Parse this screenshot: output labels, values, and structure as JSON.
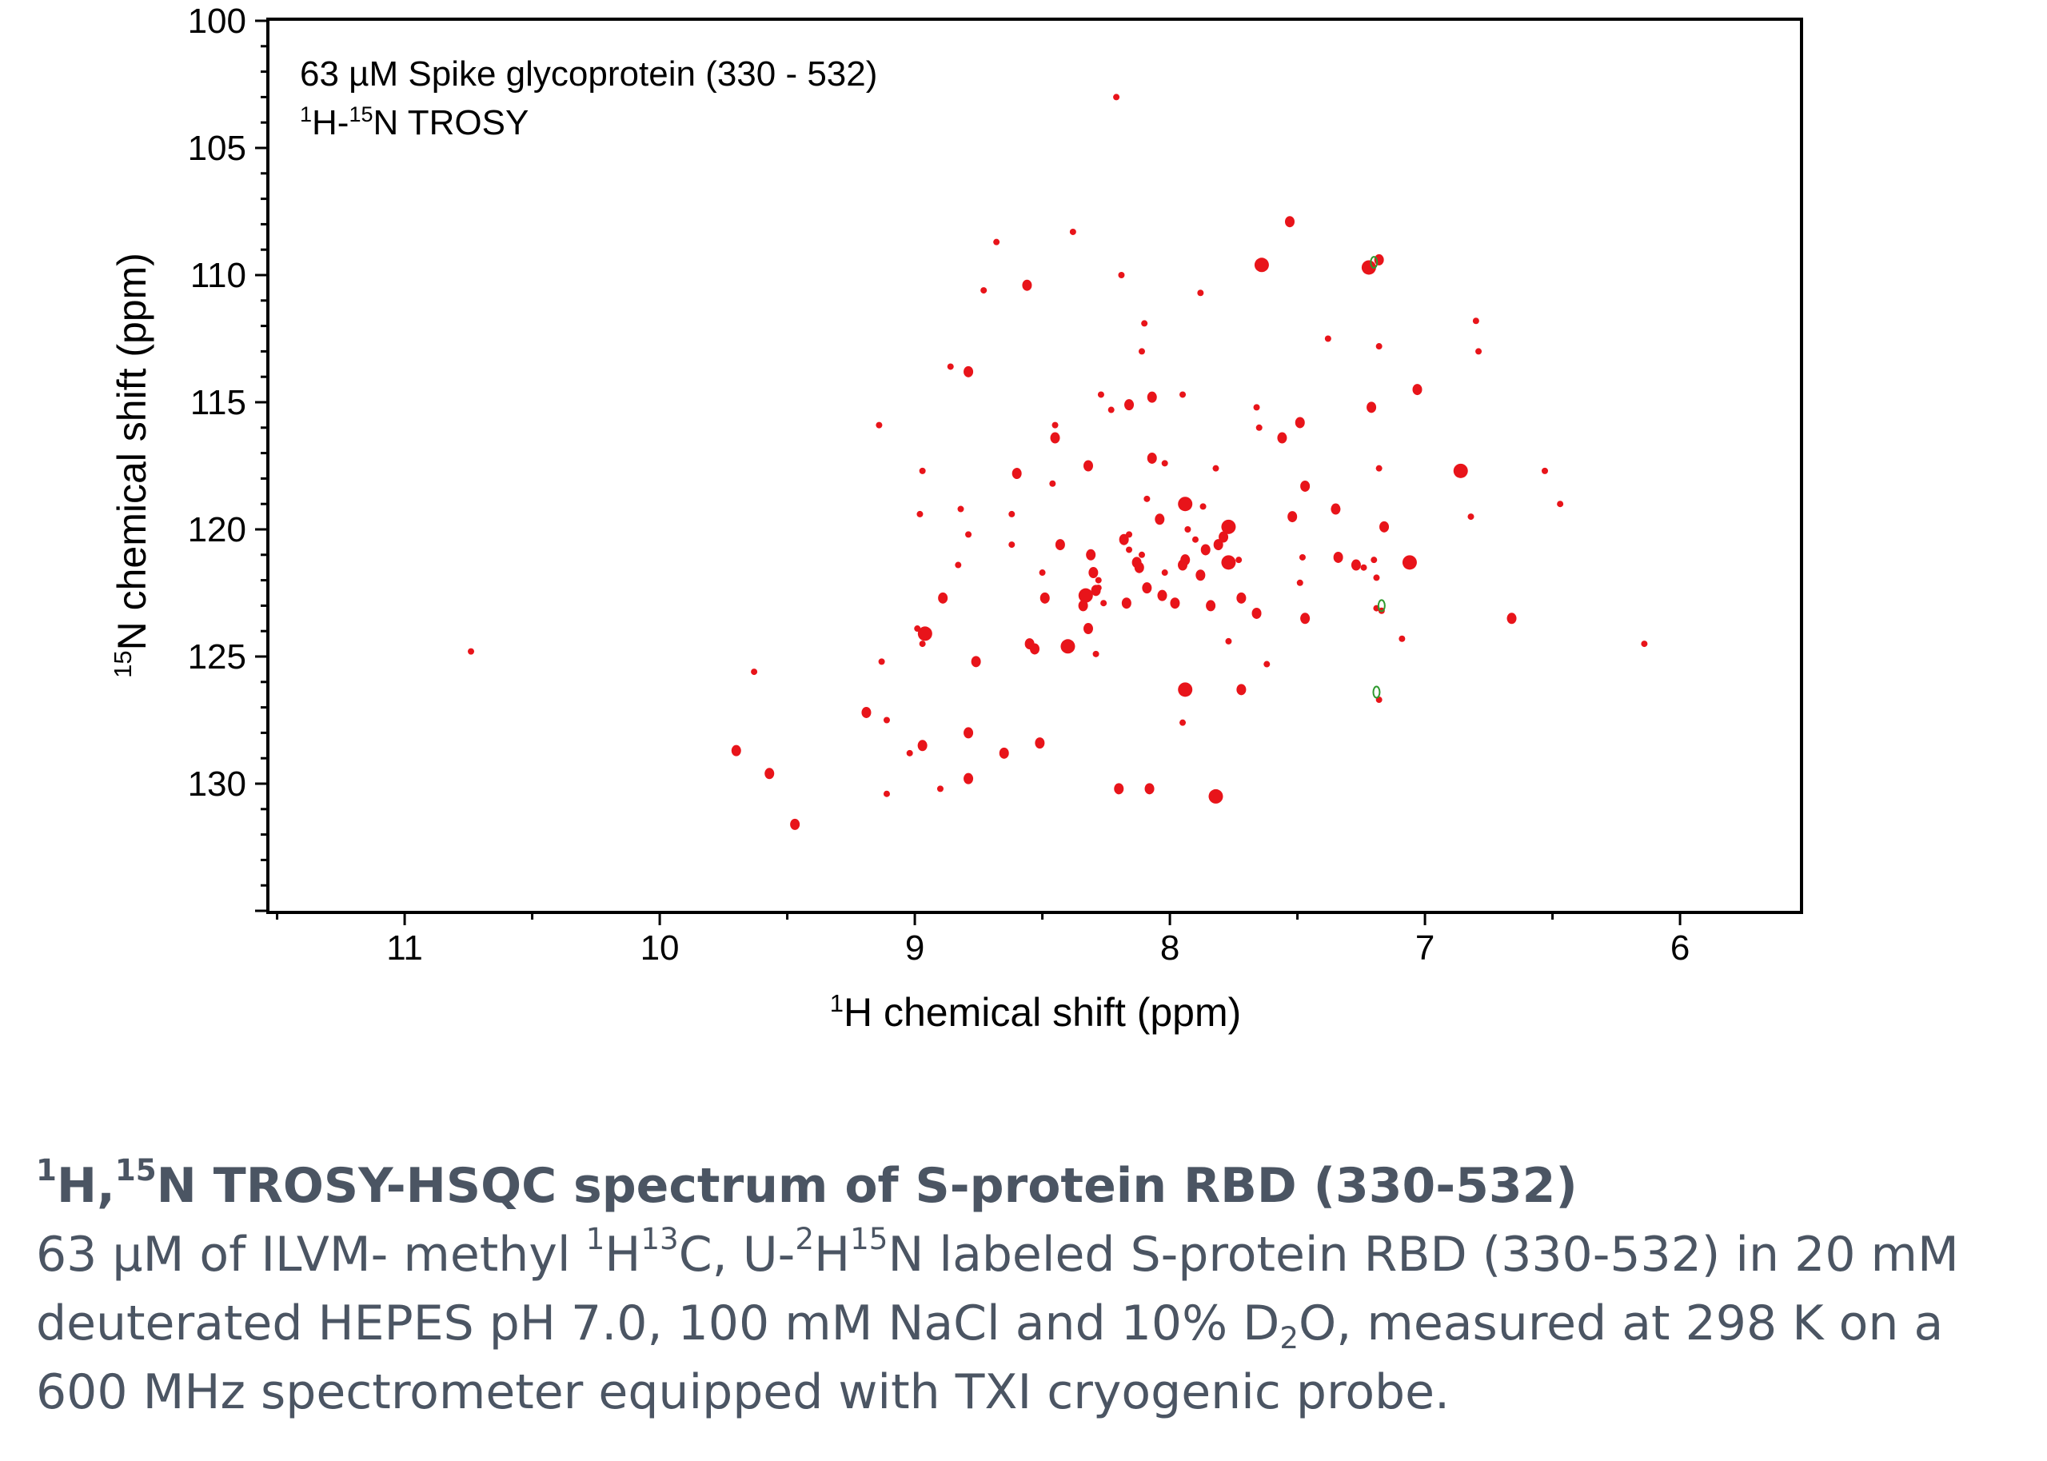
{
  "chart_data": {
    "type": "scatter",
    "annotation": {
      "line1": "63 µM Spike glycoprotein (330 - 532)",
      "line2_sup_a": "1",
      "line2_a": "H-",
      "line2_sup_b": "15",
      "line2_b": "N TROSY"
    },
    "xlabel": {
      "sup": "1",
      "text": "H chemical shift (ppm)"
    },
    "ylabel": {
      "sup": "15",
      "text": "N chemical shift (ppm)"
    },
    "xlim": [
      11.53,
      5.53
    ],
    "ylim": [
      135,
      100
    ],
    "x_reversed": true,
    "y_reversed": true,
    "xticks": [
      11,
      10,
      9,
      8,
      7,
      6
    ],
    "yticks": [
      100,
      105,
      110,
      115,
      120,
      125,
      130
    ],
    "grid": false,
    "colors": {
      "positive": "#e8141a",
      "negative": "#2e9a2e"
    },
    "series": [
      {
        "peaks": [
          [
            8.21,
            103.0,
            1
          ],
          [
            7.53,
            107.9,
            2
          ],
          [
            8.38,
            108.3,
            1
          ],
          [
            8.68,
            108.7,
            1
          ],
          [
            7.64,
            109.6,
            3
          ],
          [
            8.19,
            110.0,
            1
          ],
          [
            8.56,
            110.4,
            2
          ],
          [
            8.73,
            110.6,
            1
          ],
          [
            7.88,
            110.7,
            1
          ],
          [
            7.22,
            109.7,
            3
          ],
          [
            7.18,
            109.4,
            2
          ],
          [
            8.1,
            111.9,
            1
          ],
          [
            6.8,
            111.8,
            1
          ],
          [
            7.38,
            112.5,
            1
          ],
          [
            7.18,
            112.8,
            1
          ],
          [
            8.11,
            113.0,
            1
          ],
          [
            6.79,
            113.0,
            1
          ],
          [
            8.86,
            113.6,
            1
          ],
          [
            8.79,
            113.8,
            2
          ],
          [
            7.03,
            114.5,
            2
          ],
          [
            8.27,
            114.7,
            1
          ],
          [
            8.07,
            114.8,
            2
          ],
          [
            7.95,
            114.7,
            1
          ],
          [
            8.16,
            115.1,
            2
          ],
          [
            7.21,
            115.2,
            2
          ],
          [
            7.66,
            115.2,
            1
          ],
          [
            7.49,
            115.8,
            2
          ],
          [
            8.45,
            115.9,
            1
          ],
          [
            9.14,
            115.9,
            1
          ],
          [
            8.23,
            115.3,
            1
          ],
          [
            7.65,
            116.0,
            1
          ],
          [
            8.45,
            116.4,
            2
          ],
          [
            7.56,
            116.4,
            2
          ],
          [
            8.07,
            117.2,
            2
          ],
          [
            8.02,
            117.4,
            1
          ],
          [
            8.32,
            117.5,
            2
          ],
          [
            7.82,
            117.6,
            1
          ],
          [
            7.18,
            117.6,
            1
          ],
          [
            8.97,
            117.7,
            1
          ],
          [
            8.6,
            117.8,
            2
          ],
          [
            6.86,
            117.7,
            3
          ],
          [
            6.53,
            117.7,
            1
          ],
          [
            8.46,
            118.2,
            1
          ],
          [
            7.47,
            118.3,
            2
          ],
          [
            8.09,
            118.8,
            1
          ],
          [
            7.94,
            119.0,
            3
          ],
          [
            7.35,
            119.2,
            2
          ],
          [
            7.87,
            119.1,
            1
          ],
          [
            8.82,
            119.2,
            1
          ],
          [
            6.47,
            119.0,
            1
          ],
          [
            8.98,
            119.4,
            1
          ],
          [
            8.04,
            119.6,
            2
          ],
          [
            7.52,
            119.5,
            2
          ],
          [
            8.62,
            119.4,
            1
          ],
          [
            6.82,
            119.5,
            1
          ],
          [
            7.77,
            119.9,
            3
          ],
          [
            7.93,
            120.0,
            1
          ],
          [
            8.16,
            120.2,
            1
          ],
          [
            7.9,
            120.4,
            1
          ],
          [
            7.79,
            120.3,
            2
          ],
          [
            7.16,
            119.9,
            2
          ],
          [
            8.79,
            120.2,
            1
          ],
          [
            8.18,
            120.4,
            2
          ],
          [
            7.81,
            120.6,
            2
          ],
          [
            8.43,
            120.6,
            2
          ],
          [
            8.16,
            120.8,
            1
          ],
          [
            7.86,
            120.8,
            2
          ],
          [
            8.11,
            121.0,
            1
          ],
          [
            8.62,
            120.6,
            1
          ],
          [
            8.31,
            121.0,
            2
          ],
          [
            7.73,
            121.2,
            1
          ],
          [
            7.34,
            121.1,
            2
          ],
          [
            7.94,
            121.2,
            2
          ],
          [
            8.13,
            121.3,
            2
          ],
          [
            7.77,
            121.3,
            3
          ],
          [
            7.48,
            121.1,
            1
          ],
          [
            8.12,
            121.5,
            2
          ],
          [
            7.95,
            121.4,
            2
          ],
          [
            7.06,
            121.3,
            3
          ],
          [
            7.2,
            121.2,
            1
          ],
          [
            7.27,
            121.4,
            2
          ],
          [
            7.24,
            121.5,
            1
          ],
          [
            8.83,
            121.4,
            1
          ],
          [
            8.3,
            121.7,
            2
          ],
          [
            7.88,
            121.8,
            2
          ],
          [
            8.02,
            121.7,
            1
          ],
          [
            8.5,
            121.7,
            1
          ],
          [
            7.19,
            121.9,
            1
          ],
          [
            8.28,
            122.0,
            1
          ],
          [
            8.09,
            122.3,
            2
          ],
          [
            7.49,
            122.1,
            1
          ],
          [
            8.28,
            122.3,
            1
          ],
          [
            8.29,
            122.4,
            2
          ],
          [
            8.03,
            122.6,
            2
          ],
          [
            8.33,
            122.6,
            3
          ],
          [
            8.49,
            122.7,
            2
          ],
          [
            8.89,
            122.7,
            2
          ],
          [
            7.72,
            122.7,
            2
          ],
          [
            8.26,
            122.9,
            1
          ],
          [
            8.17,
            122.9,
            2
          ],
          [
            7.98,
            122.9,
            2
          ],
          [
            7.84,
            123.0,
            2
          ],
          [
            8.34,
            123.0,
            2
          ],
          [
            7.66,
            123.3,
            2
          ],
          [
            7.47,
            123.5,
            2
          ],
          [
            6.66,
            123.5,
            2
          ],
          [
            7.19,
            123.1,
            1
          ],
          [
            7.17,
            123.2,
            1
          ],
          [
            8.32,
            123.9,
            2
          ],
          [
            8.99,
            123.9,
            1
          ],
          [
            8.96,
            124.1,
            3
          ],
          [
            7.09,
            124.3,
            1
          ],
          [
            8.97,
            124.5,
            1
          ],
          [
            7.77,
            124.4,
            1
          ],
          [
            8.55,
            124.5,
            2
          ],
          [
            8.4,
            124.6,
            3
          ],
          [
            8.53,
            124.7,
            2
          ],
          [
            8.29,
            124.9,
            1
          ],
          [
            9.13,
            125.2,
            1
          ],
          [
            8.76,
            125.2,
            2
          ],
          [
            7.62,
            125.3,
            1
          ],
          [
            9.63,
            125.6,
            1
          ],
          [
            7.72,
            126.3,
            2
          ],
          [
            7.94,
            126.3,
            3
          ],
          [
            7.18,
            126.7,
            1
          ],
          [
            9.19,
            127.2,
            2
          ],
          [
            9.11,
            127.5,
            1
          ],
          [
            7.95,
            127.6,
            1
          ],
          [
            8.79,
            128.0,
            2
          ],
          [
            8.97,
            128.5,
            2
          ],
          [
            8.51,
            128.4,
            2
          ],
          [
            9.02,
            128.8,
            1
          ],
          [
            9.7,
            128.7,
            2
          ],
          [
            8.65,
            128.8,
            2
          ],
          [
            9.57,
            129.6,
            2
          ],
          [
            8.79,
            129.8,
            2
          ],
          [
            8.2,
            130.2,
            2
          ],
          [
            8.08,
            130.2,
            2
          ],
          [
            8.9,
            130.2,
            1
          ],
          [
            7.82,
            130.5,
            3
          ],
          [
            9.11,
            130.4,
            1
          ],
          [
            9.47,
            131.6,
            2
          ],
          [
            10.74,
            124.8,
            1
          ],
          [
            6.14,
            124.5,
            1
          ]
        ]
      },
      {
        "peaks": [
          [
            7.2,
            109.5,
            1
          ],
          [
            7.19,
            126.4,
            1
          ],
          [
            7.17,
            123.0,
            1
          ]
        ]
      }
    ]
  },
  "caption": {
    "title": [
      {
        "sup": "1"
      },
      {
        "t": "H,"
      },
      {
        "sup": "15"
      },
      {
        "t": "N TROSY-HSQC spectrum of S-protein RBD (330-532)"
      }
    ],
    "body": [
      {
        "t": "63 µM of ILVM- methyl "
      },
      {
        "sup": "1"
      },
      {
        "t": "H"
      },
      {
        "sup": "13"
      },
      {
        "t": "C, U-"
      },
      {
        "sup": "2"
      },
      {
        "t": "H"
      },
      {
        "sup": "15"
      },
      {
        "t": "N labeled S-protein RBD (330-532) in 20 mM deuterated HEPES pH 7.0, 100 mM NaCl and 10% D"
      },
      {
        "sub": "2"
      },
      {
        "t": "O,  measured at 298 K on a 600 MHz spectrometer equipped with TXI cryogenic probe."
      }
    ]
  }
}
